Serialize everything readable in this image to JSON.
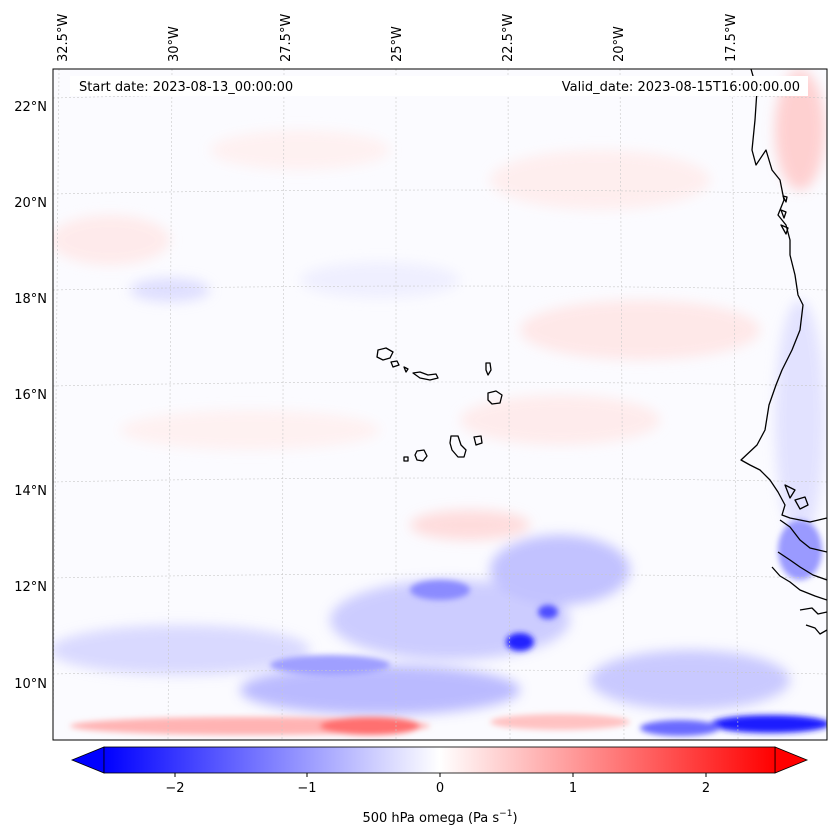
{
  "header": {
    "start_date": "Start date: 2023-08-13_00:00:00",
    "valid_date": "Valid_date: 2023-08-15T16:00:00.00"
  },
  "map": {
    "lon_labels": [
      "32.5°W",
      "30°W",
      "27.5°W",
      "25°W",
      "22.5°W",
      "20°W",
      "17.5°W"
    ],
    "lat_labels": [
      "22°N",
      "20°N",
      "18°N",
      "16°N",
      "14°N",
      "12°N",
      "10°N"
    ],
    "coastline_color": "#000000",
    "gridline_color": "#c8c8c8"
  },
  "colorbar": {
    "label": "500 hPa omega (Pa s",
    "label_exp": "−1",
    "label_close": ")",
    "ticks": [
      "−2",
      "−1",
      "0",
      "1",
      "2"
    ],
    "range": [
      -2.7,
      2.7
    ],
    "cmap": [
      "#0000ff",
      "#ffffff",
      "#ff0000"
    ],
    "extend": "both"
  }
}
